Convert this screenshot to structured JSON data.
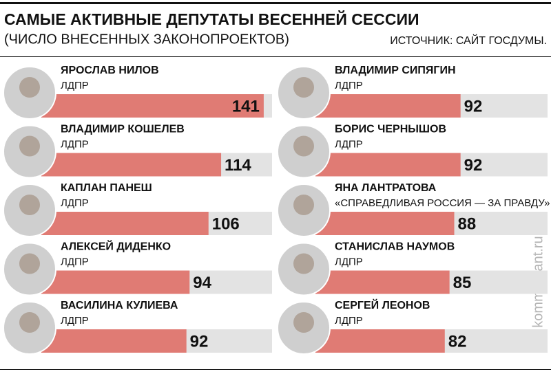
{
  "chart_data": {
    "type": "bar",
    "title": "САМЫЕ АКТИВНЫЕ ДЕПУТАТЫ ВЕСЕННЕЙ СЕССИИ",
    "subtitle": "(ЧИСЛО ВНЕСЕННЫХ ЗАКОНОПРОЕКТОВ)",
    "source": "ИСТОЧНИК: САЙТ ГОСДУМЫ.",
    "watermark": "kommersant.ru",
    "color": "#e07b74",
    "categories": [
      "ЯРОСЛАВ НИЛОВ",
      "ВЛАДИМИР КОШЕЛЕВ",
      "КАПЛАН ПАНЕШ",
      "АЛЕКСЕЙ ДИДЕНКО",
      "ВАСИЛИНА КУЛИЕВА",
      "ВЛАДИМИР СИПЯГИН",
      "БОРИС ЧЕРНЫШОВ",
      "ЯНА ЛАНТРАТОВА",
      "СТАНИСЛАВ НАУМОВ",
      "СЕРГЕЙ ЛЕОНОВ"
    ],
    "parties": [
      "ЛДПР",
      "ЛДПР",
      "ЛДПР",
      "ЛДПР",
      "ЛДПР",
      "ЛДПР",
      "ЛДПР",
      "«СПРАВЕДЛИВАЯ РОССИЯ — ЗА ПРАВДУ»",
      "ЛДПР",
      "ЛДПР"
    ],
    "values": [
      141,
      114,
      106,
      94,
      92,
      92,
      92,
      88,
      85,
      82
    ]
  }
}
